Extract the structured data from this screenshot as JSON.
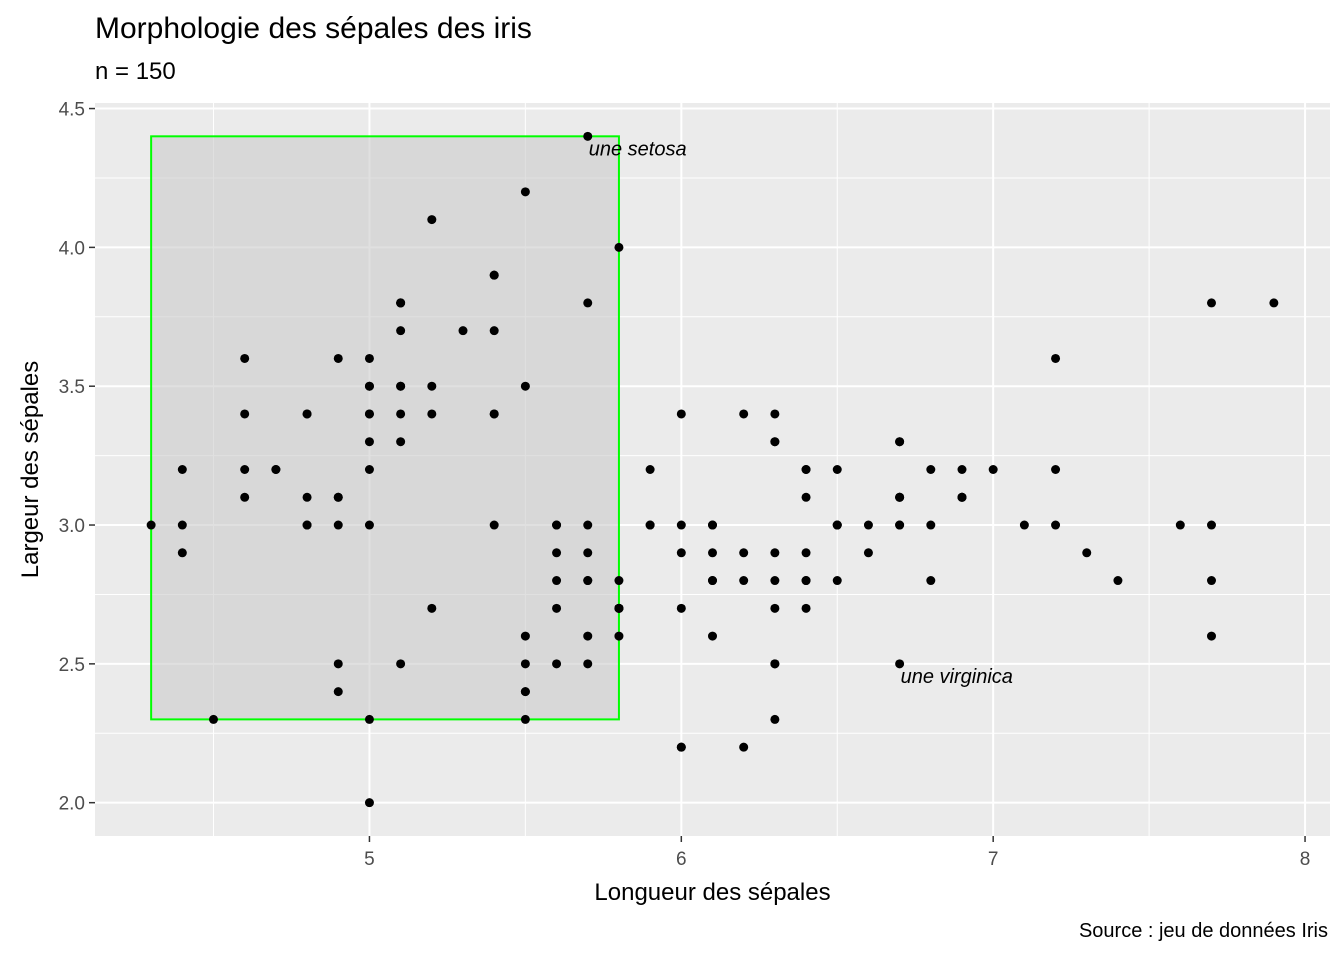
{
  "chart_data": {
    "type": "scatter",
    "title": "Morphologie des sépales des iris",
    "subtitle": "n = 150",
    "caption": "Source : jeu de données Iris",
    "xlabel": "Longueur des sépales",
    "ylabel": "Largeur des sépales",
    "xlim": [
      4.12,
      8.08
    ],
    "ylim": [
      1.88,
      4.52
    ],
    "xticks": [
      5,
      6,
      7,
      8
    ],
    "yticks": [
      2.0,
      2.5,
      3.0,
      3.5,
      4.0,
      4.5
    ],
    "xtick_labels": [
      "5",
      "6",
      "7",
      "8"
    ],
    "ytick_labels": [
      "2.0",
      "2.5",
      "3.0",
      "3.5",
      "4.0",
      "4.5"
    ],
    "grid": true,
    "colors": {
      "panel": "#ebebeb",
      "grid": "#ffffff",
      "points": "#000000",
      "rect_fill": "#cccccc",
      "rect_stroke": "#00ff00"
    },
    "highlight_rect": {
      "xmin": 4.3,
      "xmax": 5.8,
      "ymin": 2.3,
      "ymax": 4.4
    },
    "annotations": [
      {
        "text": "une setosa",
        "x": 5.7,
        "y": 4.4
      },
      {
        "text": "une virginica",
        "x": 6.7,
        "y": 2.5
      }
    ],
    "points": [
      [
        5.1,
        3.5
      ],
      [
        4.9,
        3.0
      ],
      [
        4.7,
        3.2
      ],
      [
        4.6,
        3.1
      ],
      [
        5.0,
        3.6
      ],
      [
        5.4,
        3.9
      ],
      [
        4.6,
        3.4
      ],
      [
        5.0,
        3.4
      ],
      [
        4.4,
        2.9
      ],
      [
        4.9,
        3.1
      ],
      [
        5.4,
        3.7
      ],
      [
        4.8,
        3.4
      ],
      [
        4.8,
        3.0
      ],
      [
        4.3,
        3.0
      ],
      [
        5.8,
        4.0
      ],
      [
        5.7,
        4.4
      ],
      [
        5.4,
        3.9
      ],
      [
        5.1,
        3.5
      ],
      [
        5.7,
        3.8
      ],
      [
        5.1,
        3.8
      ],
      [
        5.4,
        3.4
      ],
      [
        5.1,
        3.7
      ],
      [
        4.6,
        3.6
      ],
      [
        5.1,
        3.3
      ],
      [
        4.8,
        3.4
      ],
      [
        5.0,
        3.0
      ],
      [
        5.0,
        3.4
      ],
      [
        5.2,
        3.5
      ],
      [
        5.2,
        3.4
      ],
      [
        4.7,
        3.2
      ],
      [
        4.8,
        3.1
      ],
      [
        5.4,
        3.4
      ],
      [
        5.2,
        4.1
      ],
      [
        5.5,
        4.2
      ],
      [
        4.9,
        3.1
      ],
      [
        5.0,
        3.2
      ],
      [
        5.5,
        3.5
      ],
      [
        4.9,
        3.6
      ],
      [
        4.4,
        3.0
      ],
      [
        5.1,
        3.4
      ],
      [
        5.0,
        3.5
      ],
      [
        4.5,
        2.3
      ],
      [
        4.4,
        3.2
      ],
      [
        5.0,
        3.5
      ],
      [
        5.1,
        3.8
      ],
      [
        4.8,
        3.0
      ],
      [
        5.1,
        3.8
      ],
      [
        4.6,
        3.2
      ],
      [
        5.3,
        3.7
      ],
      [
        5.0,
        3.3
      ],
      [
        7.0,
        3.2
      ],
      [
        6.4,
        3.2
      ],
      [
        6.9,
        3.1
      ],
      [
        5.5,
        2.3
      ],
      [
        6.5,
        2.8
      ],
      [
        5.7,
        2.8
      ],
      [
        6.3,
        3.3
      ],
      [
        4.9,
        2.4
      ],
      [
        6.6,
        2.9
      ],
      [
        5.2,
        2.7
      ],
      [
        5.0,
        2.0
      ],
      [
        5.9,
        3.0
      ],
      [
        6.0,
        2.2
      ],
      [
        6.1,
        2.9
      ],
      [
        5.6,
        2.9
      ],
      [
        6.7,
        3.1
      ],
      [
        5.6,
        3.0
      ],
      [
        5.8,
        2.7
      ],
      [
        6.2,
        2.2
      ],
      [
        5.6,
        2.5
      ],
      [
        5.9,
        3.2
      ],
      [
        6.1,
        2.8
      ],
      [
        6.3,
        2.5
      ],
      [
        6.1,
        2.8
      ],
      [
        6.4,
        2.9
      ],
      [
        6.6,
        3.0
      ],
      [
        6.8,
        2.8
      ],
      [
        6.7,
        3.0
      ],
      [
        6.0,
        2.9
      ],
      [
        5.7,
        2.6
      ],
      [
        5.5,
        2.4
      ],
      [
        5.5,
        2.4
      ],
      [
        5.8,
        2.7
      ],
      [
        6.0,
        2.7
      ],
      [
        5.4,
        3.0
      ],
      [
        6.0,
        3.4
      ],
      [
        6.7,
        3.1
      ],
      [
        6.3,
        2.3
      ],
      [
        5.6,
        3.0
      ],
      [
        5.5,
        2.5
      ],
      [
        5.5,
        2.6
      ],
      [
        6.1,
        3.0
      ],
      [
        5.8,
        2.6
      ],
      [
        5.0,
        2.3
      ],
      [
        5.6,
        2.7
      ],
      [
        5.7,
        3.0
      ],
      [
        5.7,
        2.9
      ],
      [
        6.2,
        2.9
      ],
      [
        5.1,
        2.5
      ],
      [
        5.7,
        2.8
      ],
      [
        6.3,
        3.3
      ],
      [
        5.8,
        2.7
      ],
      [
        7.1,
        3.0
      ],
      [
        6.3,
        2.9
      ],
      [
        6.5,
        3.0
      ],
      [
        7.6,
        3.0
      ],
      [
        4.9,
        2.5
      ],
      [
        7.3,
        2.9
      ],
      [
        6.7,
        2.5
      ],
      [
        7.2,
        3.6
      ],
      [
        6.5,
        3.2
      ],
      [
        6.4,
        2.7
      ],
      [
        6.8,
        3.0
      ],
      [
        5.7,
        2.5
      ],
      [
        5.8,
        2.8
      ],
      [
        6.4,
        3.2
      ],
      [
        6.5,
        3.0
      ],
      [
        7.7,
        3.8
      ],
      [
        7.7,
        2.6
      ],
      [
        6.0,
        2.2
      ],
      [
        6.9,
        3.2
      ],
      [
        5.6,
        2.8
      ],
      [
        7.7,
        2.8
      ],
      [
        6.3,
        2.7
      ],
      [
        6.7,
        3.3
      ],
      [
        7.2,
        3.2
      ],
      [
        6.2,
        2.8
      ],
      [
        6.1,
        3.0
      ],
      [
        6.4,
        2.8
      ],
      [
        7.2,
        3.0
      ],
      [
        7.4,
        2.8
      ],
      [
        7.9,
        3.8
      ],
      [
        6.4,
        2.8
      ],
      [
        6.3,
        2.8
      ],
      [
        6.1,
        2.6
      ],
      [
        7.7,
        3.0
      ],
      [
        6.3,
        3.4
      ],
      [
        6.4,
        3.1
      ],
      [
        6.0,
        3.0
      ],
      [
        6.9,
        3.1
      ],
      [
        6.7,
        3.1
      ],
      [
        6.9,
        3.1
      ],
      [
        5.8,
        2.7
      ],
      [
        6.8,
        3.2
      ],
      [
        6.7,
        3.3
      ],
      [
        6.7,
        3.0
      ],
      [
        6.3,
        2.5
      ],
      [
        6.5,
        3.0
      ],
      [
        6.2,
        3.4
      ],
      [
        5.9,
        3.0
      ]
    ]
  }
}
